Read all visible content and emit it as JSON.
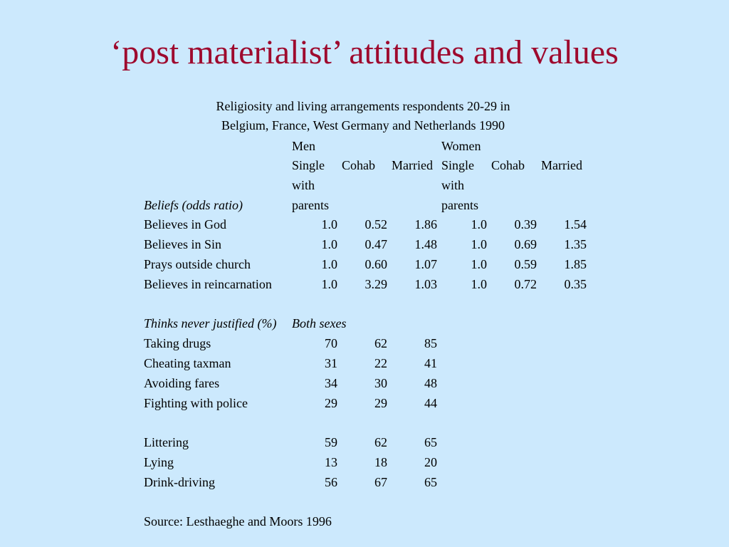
{
  "title": "‘post materialist’ attitudes and values",
  "caption": {
    "line1": "Religiosity and living arrangements respondents 20-29 in",
    "line2": "Belgium, France, West Germany and Netherlands 1990"
  },
  "groups": {
    "men": "Men",
    "women": "Women"
  },
  "subcols": {
    "single_l1": "Single",
    "single_l2": "with",
    "single_l3": "parents",
    "cohab": "Cohab",
    "married": "Married"
  },
  "beliefs": {
    "label": "Beliefs (odds ratio)",
    "rows": [
      {
        "label": "Believes in God",
        "men": [
          "1.0",
          "0.52",
          "1.86"
        ],
        "women": [
          "1.0",
          "0.39",
          "1.54"
        ]
      },
      {
        "label": "Believes in Sin",
        "men": [
          "1.0",
          "0.47",
          "1.48"
        ],
        "women": [
          "1.0",
          "0.69",
          "1.35"
        ]
      },
      {
        "label": "Prays outside church",
        "men": [
          "1.0",
          "0.60",
          "1.07"
        ],
        "women": [
          "1.0",
          "0.59",
          "1.85"
        ]
      },
      {
        "label": "Believes in reincarnation",
        "men": [
          "1.0",
          "3.29",
          "1.03"
        ],
        "women": [
          "1.0",
          "0.72",
          "0.35"
        ]
      }
    ]
  },
  "justified": {
    "label": "Thinks never justified (%)",
    "both_sexes": "Both sexes",
    "rows": [
      {
        "label": "Taking drugs",
        "values": [
          "70",
          "62",
          "85"
        ]
      },
      {
        "label": "Cheating taxman",
        "values": [
          "31",
          "22",
          "41"
        ]
      },
      {
        "label": "Avoiding fares",
        "values": [
          "34",
          "30",
          "48"
        ]
      },
      {
        "label": "Fighting with police",
        "values": [
          "29",
          "29",
          "44"
        ]
      },
      {
        "label": "Littering",
        "values": [
          "59",
          "62",
          "65"
        ]
      },
      {
        "label": "Lying",
        "values": [
          "13",
          "18",
          "20"
        ]
      },
      {
        "label": "Drink-driving",
        "values": [
          "56",
          "67",
          "65"
        ]
      }
    ]
  },
  "source": "Source: Lesthaeghe and Moors 1996"
}
